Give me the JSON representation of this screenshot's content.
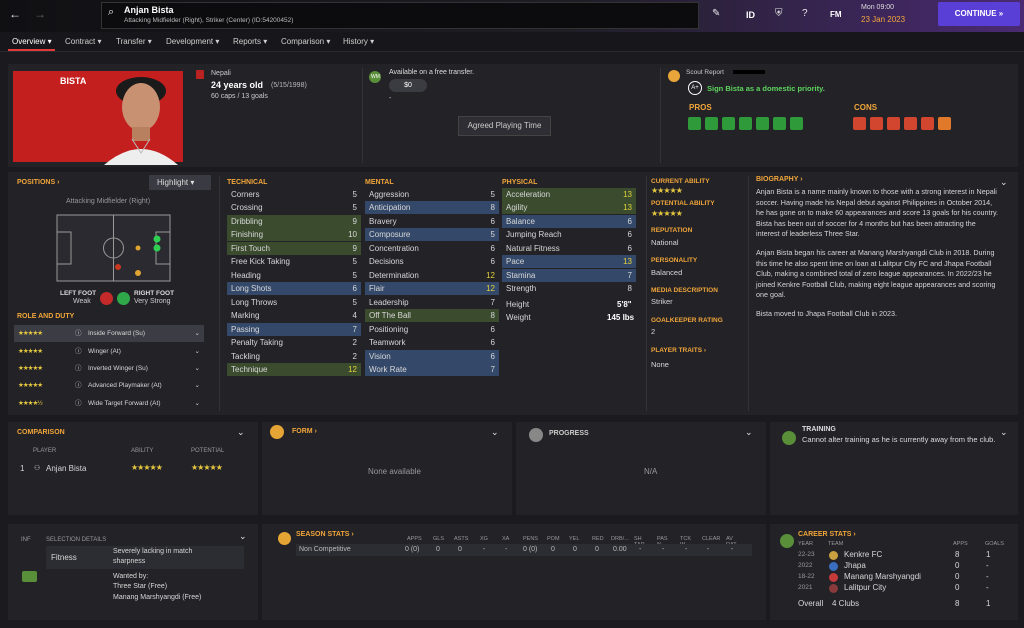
{
  "topbar": {
    "player_name": "Anjan Bista",
    "player_sub": "Attacking Midfielder (Right), Striker (Center) (ID:54200452)",
    "id_label": "ID",
    "fm_label": "FM",
    "day": "Mon 09:00",
    "date": "23 Jan 2023",
    "continue": "CONTINUE"
  },
  "nav": [
    "Overview",
    "Contract",
    "Transfer",
    "Development",
    "Reports",
    "Comparison",
    "History"
  ],
  "profile": {
    "surname": "BISTA",
    "nationality": "Nepali",
    "age": "24 years old",
    "dob": "(5/15/1998)",
    "caps": "60 caps / 13 goals",
    "transfer_status": "Available on a free transfer.",
    "value": "$0",
    "value_dash": "-",
    "playing_time": "Agreed Playing Time",
    "wm_badge": "WM"
  },
  "scout": {
    "label": "Scout Report",
    "grade": "A+",
    "recommendation": "Sign Bista as a domestic priority.",
    "pros": "PROS",
    "cons": "CONS"
  },
  "positions": {
    "title": "POSITIONS",
    "highlight": "Highlight",
    "position": "Attacking Midfielder (Right)",
    "left_foot_label": "LEFT FOOT",
    "left_foot": "Weak",
    "right_foot_label": "RIGHT FOOT",
    "right_foot": "Very Strong"
  },
  "roles": {
    "title": "ROLE AND DUTY",
    "items": [
      {
        "stars": "★★★★★",
        "name": "Inside Forward (Su)"
      },
      {
        "stars": "★★★★★",
        "name": "Winger (At)"
      },
      {
        "stars": "★★★★★",
        "name": "Inverted Winger (Su)"
      },
      {
        "stars": "★★★★★",
        "name": "Advanced Playmaker (At)"
      },
      {
        "stars": "★★★★½",
        "name": "Wide Target Forward (At)"
      }
    ]
  },
  "technical": {
    "title": "TECHNICAL",
    "rows": [
      [
        "Corners",
        "5"
      ],
      [
        "Crossing",
        "5"
      ],
      [
        "Dribbling",
        "9"
      ],
      [
        "Finishing",
        "10"
      ],
      [
        "First Touch",
        "9"
      ],
      [
        "Free Kick Taking",
        "5"
      ],
      [
        "Heading",
        "5"
      ],
      [
        "Long Shots",
        "6"
      ],
      [
        "Long Throws",
        "5"
      ],
      [
        "Marking",
        "4"
      ],
      [
        "Passing",
        "7"
      ],
      [
        "Penalty Taking",
        "2"
      ],
      [
        "Tackling",
        "2"
      ],
      [
        "Technique",
        "12"
      ]
    ]
  },
  "mental": {
    "title": "MENTAL",
    "rows": [
      [
        "Aggression",
        "5"
      ],
      [
        "Anticipation",
        "8"
      ],
      [
        "Bravery",
        "6"
      ],
      [
        "Composure",
        "5"
      ],
      [
        "Concentration",
        "6"
      ],
      [
        "Decisions",
        "6"
      ],
      [
        "Determination",
        "12"
      ],
      [
        "Flair",
        "12"
      ],
      [
        "Leadership",
        "7"
      ],
      [
        "Off The Ball",
        "8"
      ],
      [
        "Positioning",
        "6"
      ],
      [
        "Teamwork",
        "6"
      ],
      [
        "Vision",
        "6"
      ],
      [
        "Work Rate",
        "7"
      ]
    ]
  },
  "physical": {
    "title": "PHYSICAL",
    "rows": [
      [
        "Acceleration",
        "13"
      ],
      [
        "Agility",
        "13"
      ],
      [
        "Balance",
        "6"
      ],
      [
        "Jumping Reach",
        "6"
      ],
      [
        "Natural Fitness",
        "6"
      ],
      [
        "Pace",
        "13"
      ],
      [
        "Stamina",
        "7"
      ],
      [
        "Strength",
        "8"
      ]
    ],
    "height_label": "Height",
    "height": "5'8\"",
    "weight_label": "Weight",
    "weight": "145 lbs"
  },
  "info": {
    "ca_label": "CURRENT ABILITY",
    "ca": "★★★★★",
    "pa_label": "POTENTIAL ABILITY",
    "pa": "★★★★★",
    "rep_label": "REPUTATION",
    "rep": "National",
    "pers_label": "PERSONALITY",
    "pers": "Balanced",
    "media_label": "MEDIA DESCRIPTION",
    "media": "Striker",
    "gk_label": "GOALKEEPER RATING",
    "gk": "2",
    "traits_label": "PLAYER TRAITS",
    "traits": "None"
  },
  "bio": {
    "title": "BIOGRAPHY",
    "p1": [
      "Anjan Bista is a name mainly known to those with a strong interest in Nepali",
      "soccer. Having made his Nepal debut against Philippines in October 2014,",
      "he has gone on to make 60 appearances and score 13 goals for his country.",
      "Bista has been out of soccer for 4 months but has been attracting the",
      "interest of leaderless Three Star."
    ],
    "p2": [
      "Anjan Bista began his career at Manang Marshyangdi Club in 2018. During",
      "this time he also spent time on loan at Lalitpur City FC and Jhapa Football",
      "Club, making a combined total of zero league appearances. In 2022/23 he",
      "joined Kenkre Football Club, making eight league appearances and scoring",
      "one goal."
    ],
    "p3": "Bista moved to Jhapa Football Club in 2023."
  },
  "comparison": {
    "title": "COMPARISON",
    "col_player": "PLAYER",
    "col_ability": "ABILITY",
    "col_potential": "POTENTIAL",
    "row_num": "1",
    "row_name": "Anjan Bista",
    "row_ability": "★★★★★",
    "row_potential": "★★★★★"
  },
  "form": {
    "title": "FORM",
    "empty": "None available"
  },
  "progress": {
    "title": "PROGRESS",
    "empty": "N/A"
  },
  "training": {
    "title": "TRAINING",
    "text": "Cannot alter training as he is currently away from the club."
  },
  "selection": {
    "inf": "INF",
    "title": "SELECTION DETAILS",
    "fitness_label": "Fitness",
    "fitness": [
      "Severely lacking in match",
      "sharpness"
    ],
    "wanted_label": "Wanted by:",
    "wanted": [
      "Three Star (Free)",
      "Manang Marshyangdi (Free)"
    ]
  },
  "season": {
    "title": "SEASON STATS",
    "cols": [
      "APPS",
      "GLS",
      "ASTS",
      "XG",
      "XA",
      "PENS",
      "POM",
      "YEL",
      "RED",
      "DRB/...",
      "SH TAR",
      "PAS %",
      "TCK W",
      "CLEAR",
      "AV RAT"
    ],
    "row_label": "Non Competitive",
    "row": [
      "0 (0)",
      "0",
      "0",
      "-",
      "-",
      "0 (0)",
      "0",
      "0",
      "0",
      "0.00",
      "-",
      "-",
      "-",
      "-",
      "-"
    ]
  },
  "career": {
    "title": "CAREER STATS",
    "col_year": "YEAR",
    "col_team": "TEAM",
    "col_apps": "APPS",
    "col_goals": "GOALS",
    "rows": [
      [
        "22-23",
        "Kenkre FC",
        "8",
        "1"
      ],
      [
        "2022",
        "Jhapa",
        "0",
        "-"
      ],
      [
        "18-22",
        "Manang Marshyangdi",
        "0",
        "-"
      ],
      [
        "2021",
        "Lalitpur City",
        "0",
        "-"
      ]
    ],
    "overall_label": "Overall",
    "overall_clubs": "4 Clubs",
    "overall_apps": "8",
    "overall_goals": "1"
  }
}
